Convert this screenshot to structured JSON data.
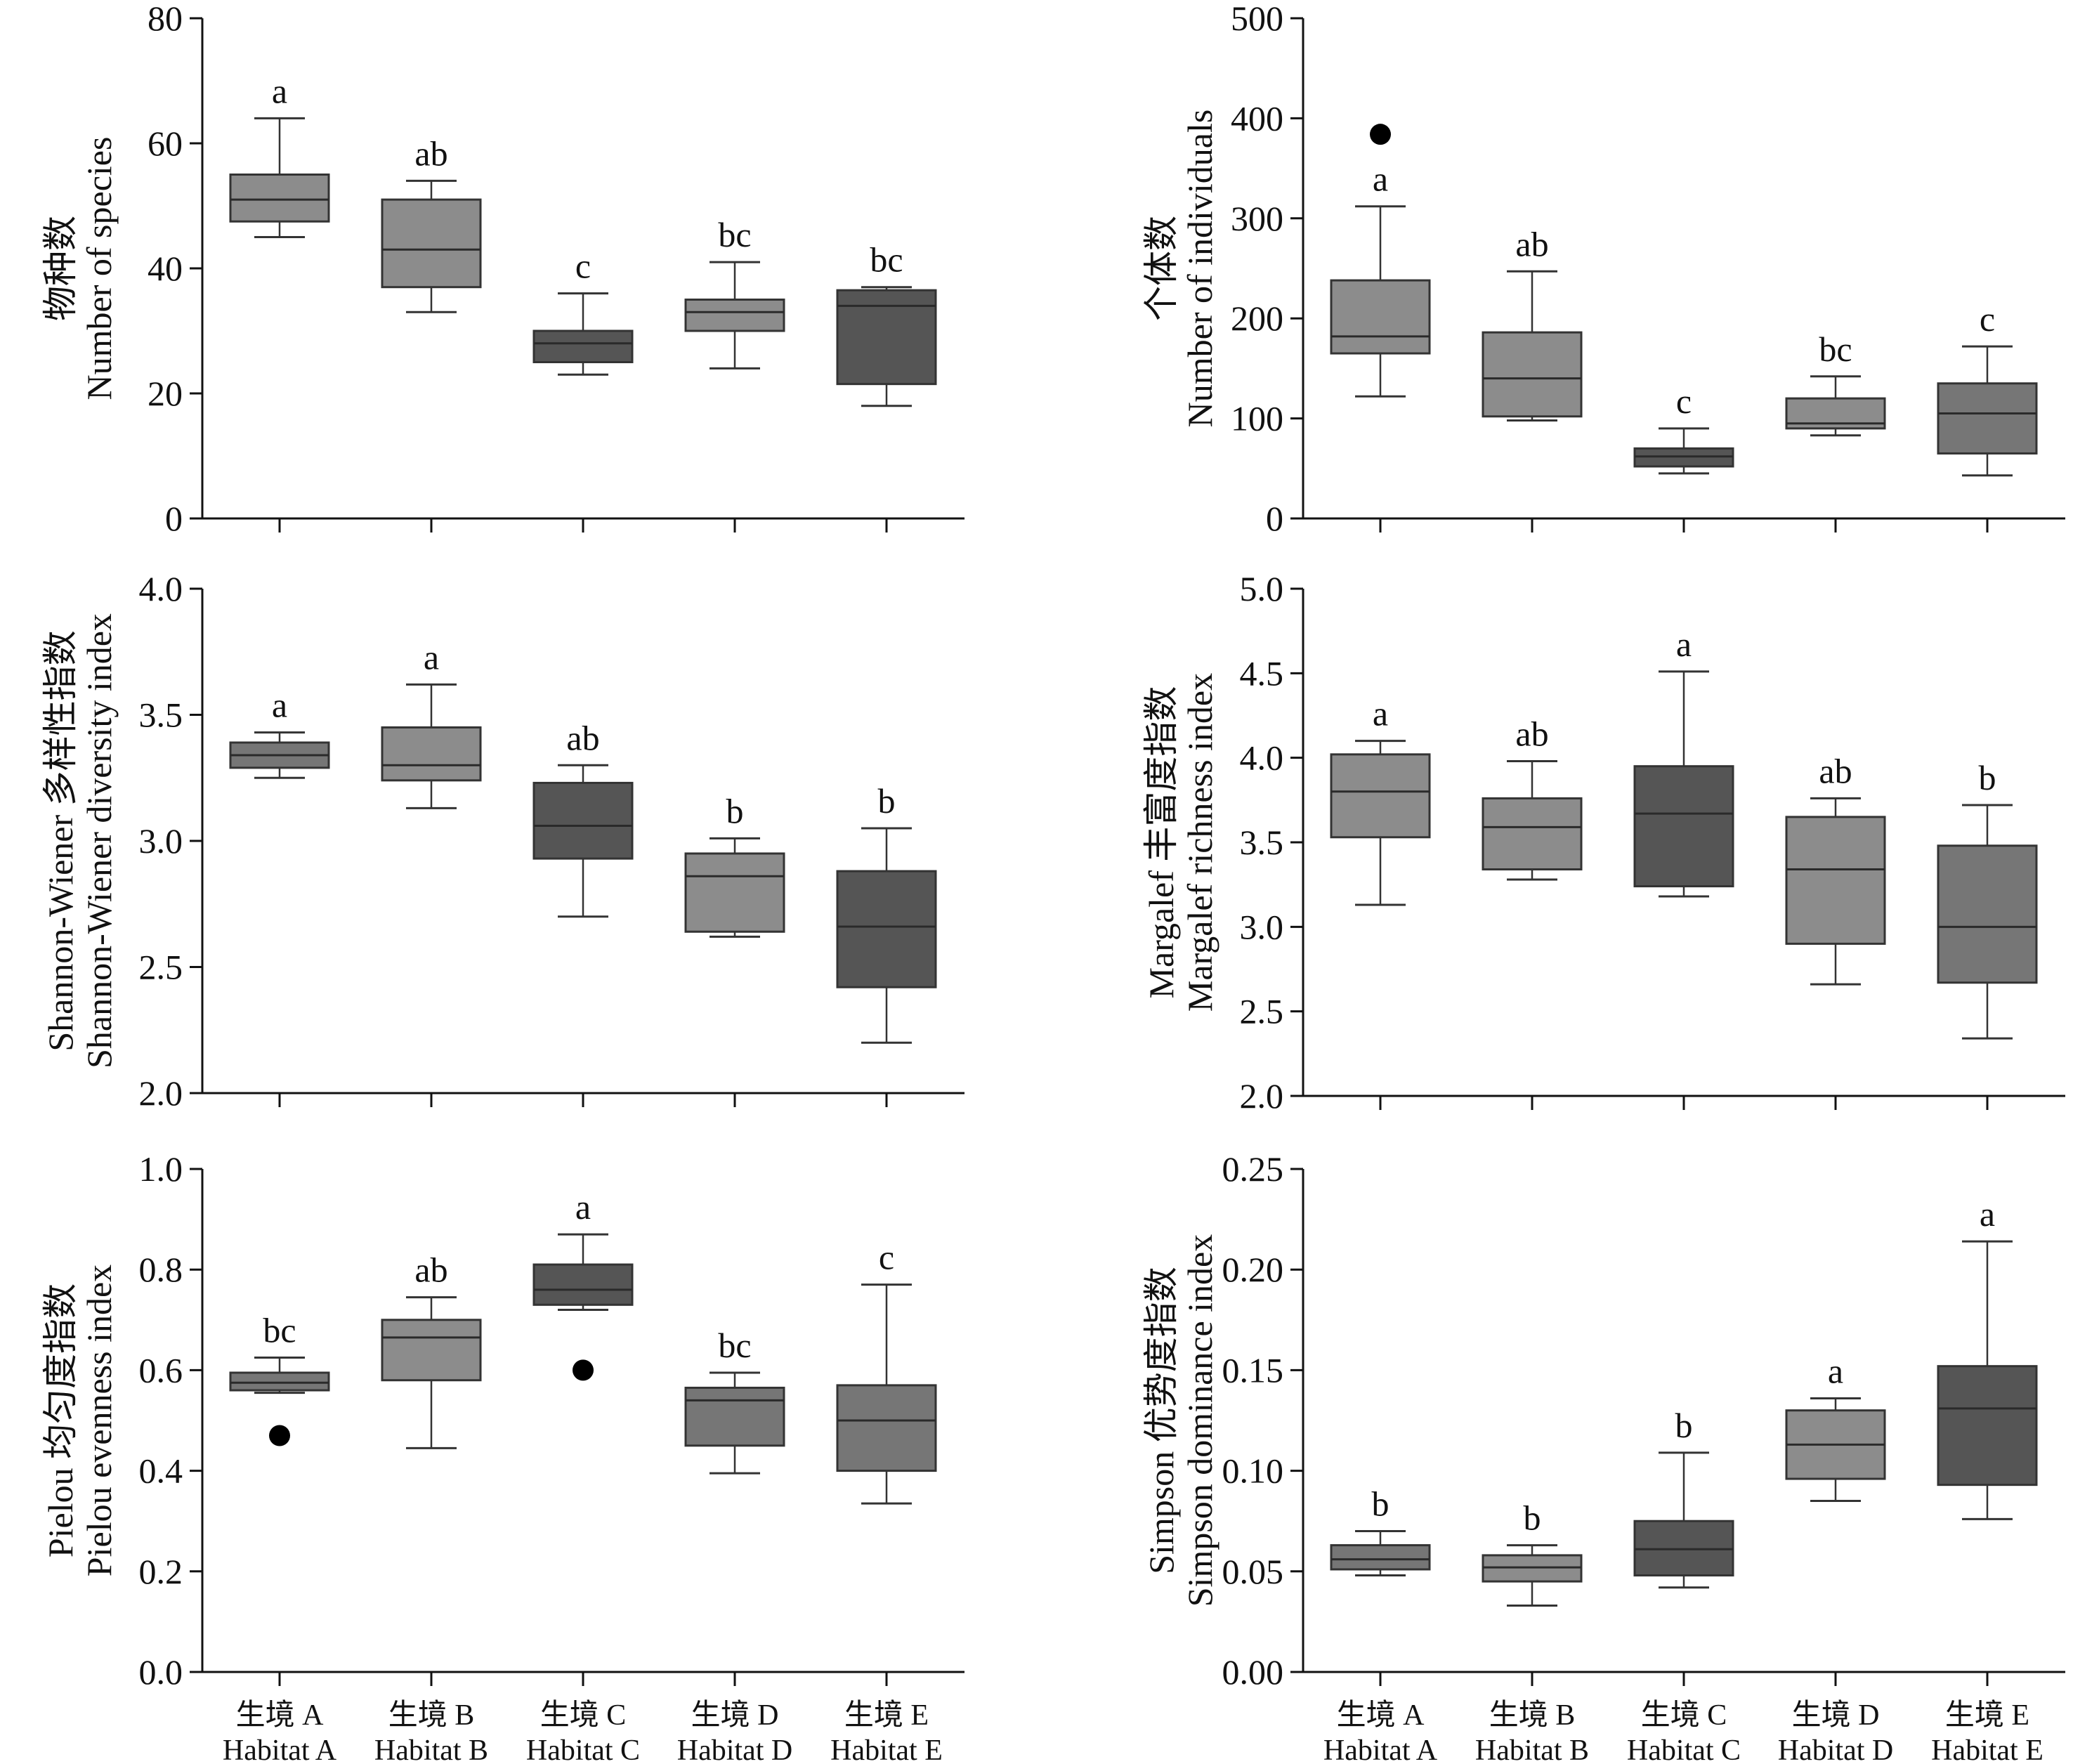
{
  "categories": [
    {
      "cn": "生境 A",
      "en": "Habitat A"
    },
    {
      "cn": "生境 B",
      "en": "Habitat B"
    },
    {
      "cn": "生境 C",
      "en": "Habitat C"
    },
    {
      "cn": "生境 D",
      "en": "Habitat D"
    },
    {
      "cn": "生境 E",
      "en": "Habitat E"
    }
  ],
  "colors": {
    "light": "#8c8c8c",
    "medium": "#767676",
    "dark": "#555555",
    "stroke": "#333333"
  },
  "chart_data": [
    {
      "type": "box",
      "ylabel": [
        "物种数",
        "Number of species"
      ],
      "ylim": [
        0,
        80
      ],
      "yticks": [
        "0",
        "20",
        "40",
        "60",
        "80"
      ],
      "boxes": [
        {
          "category": "Habitat A",
          "min": 45,
          "q1": 47.5,
          "median": 51,
          "q3": 55,
          "max": 64,
          "outliers": [],
          "letter": "a",
          "shade": "light"
        },
        {
          "category": "Habitat B",
          "min": 33,
          "q1": 37,
          "median": 43,
          "q3": 51,
          "max": 54,
          "outliers": [],
          "letter": "ab",
          "shade": "light"
        },
        {
          "category": "Habitat C",
          "min": 23,
          "q1": 25,
          "median": 28,
          "q3": 30,
          "max": 36,
          "outliers": [],
          "letter": "c",
          "shade": "dark"
        },
        {
          "category": "Habitat D",
          "min": 24,
          "q1": 30,
          "median": 33,
          "q3": 35,
          "max": 41,
          "outliers": [],
          "letter": "bc",
          "shade": "light"
        },
        {
          "category": "Habitat E",
          "min": 18,
          "q1": 21.5,
          "median": 34,
          "q3": 36.5,
          "max": 37,
          "outliers": [],
          "letter": "bc",
          "shade": "dark"
        }
      ]
    },
    {
      "type": "box",
      "ylabel": [
        "个体数",
        "Number of individuals"
      ],
      "ylim": [
        0,
        500
      ],
      "yticks": [
        "0",
        "100",
        "200",
        "300",
        "400",
        "500"
      ],
      "boxes": [
        {
          "category": "Habitat A",
          "min": 122,
          "q1": 165,
          "median": 182,
          "q3": 238,
          "max": 312,
          "outliers": [
            384
          ],
          "letter": "a",
          "shade": "light"
        },
        {
          "category": "Habitat B",
          "min": 98,
          "q1": 102,
          "median": 140,
          "q3": 186,
          "max": 247,
          "outliers": [],
          "letter": "ab",
          "shade": "light"
        },
        {
          "category": "Habitat C",
          "min": 45,
          "q1": 52,
          "median": 62,
          "q3": 70,
          "max": 90,
          "outliers": [],
          "letter": "c",
          "shade": "dark"
        },
        {
          "category": "Habitat D",
          "min": 83,
          "q1": 90,
          "median": 95,
          "q3": 120,
          "max": 142,
          "outliers": [],
          "letter": "bc",
          "shade": "light"
        },
        {
          "category": "Habitat E",
          "min": 43,
          "q1": 65,
          "median": 105,
          "q3": 135,
          "max": 172,
          "outliers": [],
          "letter": "c",
          "shade": "medium"
        }
      ]
    },
    {
      "type": "box",
      "ylabel": [
        "Shannon-Wiener 多样性指数",
        "Shannon-Wiener diversity index"
      ],
      "ylim": [
        2.0,
        4.0
      ],
      "yticks": [
        "2.0",
        "2.5",
        "3.0",
        "3.5",
        "4.0"
      ],
      "boxes": [
        {
          "category": "Habitat A",
          "min": 3.25,
          "q1": 3.29,
          "median": 3.34,
          "q3": 3.39,
          "max": 3.43,
          "outliers": [],
          "letter": "a",
          "shade": "medium"
        },
        {
          "category": "Habitat B",
          "min": 3.13,
          "q1": 3.24,
          "median": 3.3,
          "q3": 3.45,
          "max": 3.62,
          "outliers": [],
          "letter": "a",
          "shade": "light"
        },
        {
          "category": "Habitat C",
          "min": 2.7,
          "q1": 2.93,
          "median": 3.06,
          "q3": 3.23,
          "max": 3.3,
          "outliers": [],
          "letter": "ab",
          "shade": "dark"
        },
        {
          "category": "Habitat D",
          "min": 2.62,
          "q1": 2.64,
          "median": 2.86,
          "q3": 2.95,
          "max": 3.01,
          "outliers": [],
          "letter": "b",
          "shade": "light"
        },
        {
          "category": "Habitat E",
          "min": 2.2,
          "q1": 2.42,
          "median": 2.66,
          "q3": 2.88,
          "max": 3.05,
          "outliers": [],
          "letter": "b",
          "shade": "dark"
        }
      ]
    },
    {
      "type": "box",
      "ylabel": [
        "Margalef 丰富度指数",
        "Margalef richness index"
      ],
      "ylim": [
        2.0,
        5.0
      ],
      "yticks": [
        "2.0",
        "2.5",
        "3.0",
        "3.5",
        "4.0",
        "4.5",
        "5.0"
      ],
      "boxes": [
        {
          "category": "Habitat A",
          "min": 3.13,
          "q1": 3.53,
          "median": 3.8,
          "q3": 4.02,
          "max": 4.1,
          "outliers": [],
          "letter": "a",
          "shade": "light"
        },
        {
          "category": "Habitat B",
          "min": 3.28,
          "q1": 3.34,
          "median": 3.59,
          "q3": 3.76,
          "max": 3.98,
          "outliers": [],
          "letter": "ab",
          "shade": "light"
        },
        {
          "category": "Habitat C",
          "min": 3.18,
          "q1": 3.24,
          "median": 3.67,
          "q3": 3.95,
          "max": 4.51,
          "outliers": [],
          "letter": "a",
          "shade": "dark"
        },
        {
          "category": "Habitat D",
          "min": 2.66,
          "q1": 2.9,
          "median": 3.34,
          "q3": 3.65,
          "max": 3.76,
          "outliers": [],
          "letter": "ab",
          "shade": "light"
        },
        {
          "category": "Habitat E",
          "min": 2.34,
          "q1": 2.67,
          "median": 3.0,
          "q3": 3.48,
          "max": 3.72,
          "outliers": [],
          "letter": "b",
          "shade": "medium"
        }
      ]
    },
    {
      "type": "box",
      "ylabel": [
        "Pielou 均匀度指数",
        "Pielou evenness index"
      ],
      "ylim": [
        0.0,
        1.0
      ],
      "yticks": [
        "0.0",
        "0.2",
        "0.4",
        "0.6",
        "0.8",
        "1.0"
      ],
      "boxes": [
        {
          "category": "Habitat A",
          "min": 0.555,
          "q1": 0.56,
          "median": 0.575,
          "q3": 0.595,
          "max": 0.625,
          "outliers": [
            0.47
          ],
          "letter": "bc",
          "shade": "medium"
        },
        {
          "category": "Habitat B",
          "min": 0.445,
          "q1": 0.58,
          "median": 0.665,
          "q3": 0.7,
          "max": 0.745,
          "outliers": [],
          "letter": "ab",
          "shade": "light"
        },
        {
          "category": "Habitat C",
          "min": 0.72,
          "q1": 0.73,
          "median": 0.76,
          "q3": 0.81,
          "max": 0.87,
          "outliers": [
            0.6
          ],
          "letter": "a",
          "shade": "dark"
        },
        {
          "category": "Habitat D",
          "min": 0.395,
          "q1": 0.45,
          "median": 0.54,
          "q3": 0.565,
          "max": 0.595,
          "outliers": [],
          "letter": "bc",
          "shade": "medium"
        },
        {
          "category": "Habitat E",
          "min": 0.335,
          "q1": 0.4,
          "median": 0.5,
          "q3": 0.57,
          "max": 0.77,
          "outliers": [],
          "letter": "c",
          "shade": "medium"
        }
      ]
    },
    {
      "type": "box",
      "ylabel": [
        "Simpson 优势度指数",
        "Simpson dominance index"
      ],
      "ylim": [
        0.0,
        0.25
      ],
      "yticks": [
        "0.00",
        "0.05",
        "0.10",
        "0.15",
        "0.20",
        "0.25"
      ],
      "boxes": [
        {
          "category": "Habitat A",
          "min": 0.048,
          "q1": 0.051,
          "median": 0.056,
          "q3": 0.063,
          "max": 0.07,
          "outliers": [],
          "letter": "b",
          "shade": "medium"
        },
        {
          "category": "Habitat B",
          "min": 0.033,
          "q1": 0.045,
          "median": 0.052,
          "q3": 0.058,
          "max": 0.063,
          "outliers": [],
          "letter": "b",
          "shade": "light"
        },
        {
          "category": "Habitat C",
          "min": 0.042,
          "q1": 0.048,
          "median": 0.061,
          "q3": 0.075,
          "max": 0.109,
          "outliers": [],
          "letter": "b",
          "shade": "dark"
        },
        {
          "category": "Habitat D",
          "min": 0.085,
          "q1": 0.096,
          "median": 0.113,
          "q3": 0.13,
          "max": 0.136,
          "outliers": [],
          "letter": "a",
          "shade": "light"
        },
        {
          "category": "Habitat E",
          "min": 0.076,
          "q1": 0.093,
          "median": 0.131,
          "q3": 0.152,
          "max": 0.214,
          "outliers": [],
          "letter": "a",
          "shade": "dark"
        }
      ]
    }
  ]
}
